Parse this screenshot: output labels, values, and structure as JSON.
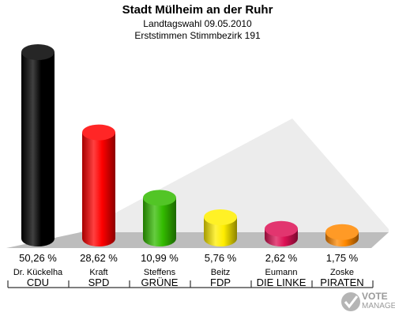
{
  "header": {
    "title": "Stadt Mülheim an der Ruhr",
    "subtitle1": "Landtagswahl 09.05.2010",
    "subtitle2": "Erststimmen Stimmbezirk 191"
  },
  "watermark": {
    "line1": "VOTE",
    "line2": "MANAGER"
  },
  "chart_data": {
    "type": "bar",
    "title": "Stadt Mülheim an der Ruhr",
    "subtitle": "Landtagswahl 09.05.2010 — Erststimmen Stimmbezirk 191",
    "categories": [
      "CDU",
      "SPD",
      "GRÜNE",
      "FDP",
      "DIE LINKE",
      "PIRATEN"
    ],
    "candidates": [
      "Dr. Kückelha",
      "Kraft",
      "Steffens",
      "Beitz",
      "Eumann",
      "Zoske"
    ],
    "values": [
      50.26,
      28.62,
      10.99,
      5.76,
      2.62,
      1.75
    ],
    "value_labels": [
      "50,26 %",
      "28,62 %",
      "10,99 %",
      "5,76 %",
      "2,62 %",
      "1,75 %"
    ],
    "colors": [
      "#000000",
      "#ff0000",
      "#33bb00",
      "#ffee00",
      "#dd1155",
      "#ff8800"
    ],
    "ylim": [
      0,
      50.26
    ],
    "grid": false,
    "legend": "none"
  }
}
